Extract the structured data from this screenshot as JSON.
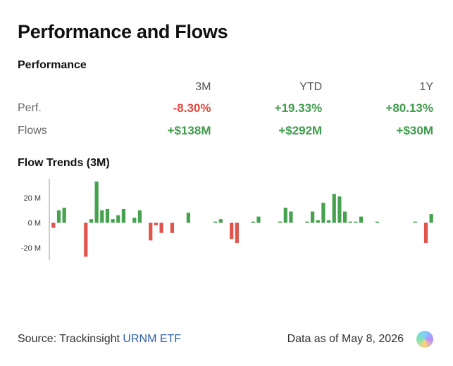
{
  "title": "Performance and Flows",
  "performance": {
    "heading": "Performance",
    "columns": [
      "3M",
      "YTD",
      "1Y"
    ],
    "rows": [
      {
        "label": "Perf.",
        "values": [
          "-8.30%",
          "+19.33%",
          "+80.13%"
        ],
        "status": [
          "neg",
          "pos",
          "pos"
        ]
      },
      {
        "label": "Flows",
        "values": [
          "+$138M",
          "+$292M",
          "+$30M"
        ],
        "status": [
          "pos",
          "pos",
          "pos"
        ]
      }
    ]
  },
  "flow_trends": {
    "heading": "Flow Trends (3M)"
  },
  "chart_data": {
    "type": "bar",
    "title": "Flow Trends (3M)",
    "units": "M",
    "y_ticks": [
      {
        "value": 20,
        "label": "20 M"
      },
      {
        "value": 0,
        "label": "0 M"
      },
      {
        "value": -20,
        "label": "-20 M"
      }
    ],
    "ylim": [
      -30,
      34
    ],
    "values": [
      -4,
      10,
      12,
      0,
      0,
      0,
      -27,
      3,
      33,
      10,
      11,
      3,
      6,
      11,
      0,
      4,
      10,
      0,
      -14,
      -2,
      -8,
      0,
      -8,
      0,
      0,
      8,
      0,
      0,
      0,
      0,
      1,
      3,
      0,
      -13,
      -16,
      0,
      0,
      1,
      5,
      0,
      0,
      0,
      1,
      12,
      9,
      0,
      0,
      1,
      9,
      2,
      16,
      2,
      23,
      21,
      9,
      1,
      1,
      5,
      0,
      0,
      1,
      0,
      0,
      0,
      0,
      0,
      0,
      1,
      0,
      -16,
      7
    ],
    "colors": {
      "positive": "#47a24f",
      "negative": "#e0544c",
      "axis": "#999999"
    }
  },
  "footer": {
    "source_prefix": "Source: Trackinsight",
    "source_link": "URNM ETF",
    "as_of": "Data as of May 8, 2026"
  }
}
